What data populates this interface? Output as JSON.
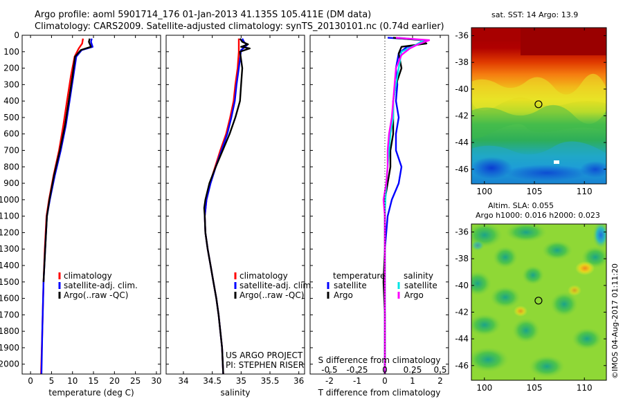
{
  "header": {
    "title_line1": "Argo profile: aoml 5901714_176 01-Jan-2013 41.135S 105.411E (DM data)",
    "title_line2": "Climatology: CARS2009. Satellite-adjusted climatology: synTS_20130101.nc (0.74d earlier)"
  },
  "colors": {
    "climatology": "#ff0000",
    "satellite": "#0000ff",
    "argo": "#000000",
    "salinity_satellite": "#00e5e5",
    "salinity_argo": "#ff00ff"
  },
  "chart_data": [
    {
      "type": "line",
      "id": "temperature",
      "xlabel": "temperature (deg C)",
      "xlim": [
        -2,
        31
      ],
      "ylim": [
        2060,
        0
      ],
      "x_ticks": [
        0,
        5,
        10,
        15,
        20,
        25,
        30
      ],
      "y_ticks": [
        0,
        100,
        200,
        300,
        400,
        500,
        600,
        700,
        800,
        900,
        1000,
        1100,
        1200,
        1300,
        1400,
        1500,
        1600,
        1700,
        1800,
        1900,
        2000
      ],
      "legend": [
        "climatology",
        "satellite-adj. clim.",
        "Argo(..raw -QC)"
      ],
      "series": [
        {
          "name": "climatology",
          "points": [
            [
              12.5,
              20
            ],
            [
              12.3,
              50
            ],
            [
              11.5,
              80
            ],
            [
              10.5,
              130
            ],
            [
              9.6,
              250
            ],
            [
              8.7,
              400
            ],
            [
              7.8,
              550
            ],
            [
              6.8,
              700
            ],
            [
              5.5,
              850
            ],
            [
              4.4,
              1000
            ],
            [
              3.8,
              1100
            ],
            [
              3.4,
              1300
            ],
            [
              3.1,
              1500
            ],
            [
              2.8,
              1800
            ],
            [
              2.5,
              2060
            ]
          ]
        },
        {
          "name": "satellite-adj. clim.",
          "points": [
            [
              14.6,
              20
            ],
            [
              14.4,
              40
            ],
            [
              14.8,
              70
            ],
            [
              12.2,
              90
            ],
            [
              10.9,
              130
            ],
            [
              10.2,
              250
            ],
            [
              9.3,
              400
            ],
            [
              8.4,
              550
            ],
            [
              7.2,
              700
            ],
            [
              5.8,
              850
            ],
            [
              4.6,
              1000
            ],
            [
              3.9,
              1100
            ],
            [
              3.5,
              1300
            ],
            [
              3.1,
              1500
            ],
            [
              2.8,
              1800
            ],
            [
              2.6,
              2060
            ]
          ]
        },
        {
          "name": "Argo(..raw -QC)",
          "points": [
            [
              14.1,
              20
            ],
            [
              13.9,
              40
            ],
            [
              14.4,
              70
            ],
            [
              12.0,
              90
            ],
            [
              10.6,
              130
            ],
            [
              10.0,
              250
            ],
            [
              9.1,
              400
            ],
            [
              8.2,
              550
            ],
            [
              7.0,
              700
            ],
            [
              5.6,
              850
            ],
            [
              4.5,
              1000
            ],
            [
              3.9,
              1100
            ],
            [
              3.5,
              1300
            ],
            [
              3.1,
              1500
            ]
          ]
        }
      ]
    },
    {
      "type": "line",
      "id": "salinity",
      "xlabel": "salinity",
      "xlim": [
        33.7,
        36.1
      ],
      "ylim": [
        2060,
        0
      ],
      "x_ticks": [
        34,
        34.5,
        35,
        35.5,
        36
      ],
      "legend": [
        "climatology",
        "satellite-adj. clim.",
        "Argo(..raw -QC)"
      ],
      "project_line1": "US ARGO PROJECT",
      "project_line2": "PI: STEPHEN RISER",
      "series": [
        {
          "name": "climatology",
          "points": [
            [
              34.96,
              20
            ],
            [
              34.96,
              100
            ],
            [
              34.94,
              200
            ],
            [
              34.9,
              300
            ],
            [
              34.87,
              400
            ],
            [
              34.81,
              500
            ],
            [
              34.74,
              600
            ],
            [
              34.64,
              700
            ],
            [
              34.55,
              800
            ],
            [
              34.46,
              900
            ],
            [
              34.4,
              1000
            ],
            [
              34.37,
              1100
            ],
            [
              34.38,
              1200
            ],
            [
              34.42,
              1300
            ],
            [
              34.47,
              1400
            ],
            [
              34.52,
              1500
            ],
            [
              34.57,
              1600
            ],
            [
              34.61,
              1700
            ],
            [
              34.64,
              1800
            ],
            [
              34.67,
              1900
            ],
            [
              34.69,
              2060
            ]
          ]
        },
        {
          "name": "satellite-adj. clim.",
          "points": [
            [
              35.02,
              20
            ],
            [
              35.05,
              40
            ],
            [
              35.1,
              60
            ],
            [
              35.0,
              90
            ],
            [
              34.96,
              200
            ],
            [
              34.92,
              300
            ],
            [
              34.89,
              400
            ],
            [
              34.83,
              500
            ],
            [
              34.76,
              600
            ],
            [
              34.66,
              700
            ],
            [
              34.56,
              800
            ],
            [
              34.47,
              900
            ],
            [
              34.4,
              1000
            ],
            [
              34.37,
              1100
            ],
            [
              34.38,
              1200
            ],
            [
              34.42,
              1300
            ],
            [
              34.47,
              1400
            ],
            [
              34.52,
              1500
            ],
            [
              34.57,
              1600
            ],
            [
              34.61,
              1700
            ],
            [
              34.64,
              1800
            ],
            [
              34.67,
              1900
            ],
            [
              34.69,
              2060
            ]
          ]
        },
        {
          "name": "Argo(..raw -QC)",
          "points": [
            [
              34.98,
              20
            ],
            [
              35.02,
              40
            ],
            [
              35.12,
              55
            ],
            [
              35.0,
              70
            ],
            [
              35.15,
              80
            ],
            [
              34.98,
              100
            ],
            [
              35.02,
              200
            ],
            [
              35.0,
              300
            ],
            [
              34.98,
              400
            ],
            [
              34.9,
              500
            ],
            [
              34.8,
              600
            ],
            [
              34.68,
              700
            ],
            [
              34.56,
              800
            ],
            [
              34.45,
              900
            ],
            [
              34.38,
              1000
            ],
            [
              34.36,
              1050
            ],
            [
              34.37,
              1100
            ],
            [
              34.38,
              1200
            ],
            [
              34.42,
              1300
            ],
            [
              34.47,
              1400
            ],
            [
              34.52,
              1500
            ],
            [
              34.57,
              1600
            ],
            [
              34.61,
              1700
            ],
            [
              34.64,
              1800
            ],
            [
              34.67,
              1900
            ],
            [
              34.69,
              2060
            ]
          ]
        }
      ]
    },
    {
      "type": "line",
      "id": "difference",
      "xlabel": "T difference from climatology",
      "xlabel_top": "S difference from climatology",
      "xlim": [
        -2.7,
        2.3
      ],
      "ylim": [
        2060,
        0
      ],
      "x_ticks": [
        -2,
        -1,
        0,
        1,
        2
      ],
      "s_tick_labels": [
        "-0.5",
        "-0.25",
        "0",
        "0.25",
        "0.5"
      ],
      "s_tick_positions": [
        -2,
        -1,
        0,
        1,
        2
      ],
      "legend_temperature": "temperature",
      "legend_salinity": "salinity",
      "legend_items": [
        "satellite",
        "Argo",
        "satellite",
        "Argo"
      ],
      "series": [
        {
          "name": "temperature satellite",
          "points": [
            [
              0.1,
              15
            ],
            [
              1.5,
              30
            ],
            [
              1.4,
              50
            ],
            [
              0.8,
              70
            ],
            [
              0.5,
              110
            ],
            [
              0.4,
              200
            ],
            [
              0.45,
              300
            ],
            [
              0.4,
              400
            ],
            [
              0.5,
              500
            ],
            [
              0.4,
              600
            ],
            [
              0.4,
              700
            ],
            [
              0.6,
              800
            ],
            [
              0.5,
              900
            ],
            [
              0.25,
              1000
            ],
            [
              0.1,
              1100
            ],
            [
              0.0,
              1300
            ],
            [
              0.0,
              2060
            ]
          ]
        },
        {
          "name": "temperature Argo",
          "points": [
            [
              0.3,
              15
            ],
            [
              1.3,
              30
            ],
            [
              1.5,
              50
            ],
            [
              0.6,
              70
            ],
            [
              0.5,
              110
            ],
            [
              0.6,
              200
            ],
            [
              0.4,
              300
            ],
            [
              0.3,
              400
            ],
            [
              0.3,
              500
            ],
            [
              0.3,
              600
            ],
            [
              0.2,
              700
            ],
            [
              0.2,
              800
            ],
            [
              0.1,
              900
            ],
            [
              0.0,
              1000
            ],
            [
              0.0,
              1100
            ],
            [
              0.0,
              1300
            ],
            [
              -0.05,
              1500
            ],
            [
              0.0,
              1700
            ],
            [
              0.0,
              2060
            ]
          ]
        },
        {
          "name": "salinity satellite",
          "points": [
            [
              0.5,
              15
            ],
            [
              1.4,
              30
            ],
            [
              1.1,
              60
            ],
            [
              0.6,
              100
            ],
            [
              0.5,
              200
            ],
            [
              0.4,
              300
            ],
            [
              0.3,
              400
            ],
            [
              0.3,
              500
            ],
            [
              0.2,
              600
            ],
            [
              0.15,
              700
            ],
            [
              0.1,
              800
            ],
            [
              0.05,
              900
            ],
            [
              0.02,
              1000
            ],
            [
              0.0,
              1100
            ],
            [
              0.0,
              1300
            ],
            [
              0.0,
              2060
            ]
          ]
        },
        {
          "name": "salinity Argo",
          "points": [
            [
              0.4,
              15
            ],
            [
              1.6,
              30
            ],
            [
              1.2,
              55
            ],
            [
              0.9,
              80
            ],
            [
              0.6,
              120
            ],
            [
              0.4,
              200
            ],
            [
              0.35,
              300
            ],
            [
              0.3,
              400
            ],
            [
              0.25,
              500
            ],
            [
              0.15,
              600
            ],
            [
              0.1,
              700
            ],
            [
              0.1,
              800
            ],
            [
              0.05,
              900
            ],
            [
              -0.05,
              1000
            ],
            [
              0.0,
              1100
            ],
            [
              0.0,
              1300
            ],
            [
              0.0,
              2060
            ]
          ]
        }
      ]
    },
    {
      "type": "heatmap",
      "id": "sst_map",
      "title": "sat. SST: 14 Argo: 13.9",
      "xlim": [
        98.7,
        112.2
      ],
      "ylim": [
        -47.1,
        -35.4
      ],
      "x_ticks": [
        100,
        105,
        110
      ],
      "y_ticks": [
        -36,
        -38,
        -40,
        -42,
        -44,
        -46
      ],
      "marker": [
        105.411,
        -41.135
      ]
    },
    {
      "type": "heatmap",
      "id": "sla_map",
      "title_line1": "Altim. SLA: 0.055",
      "title_line2": "Argo h1000: 0.016 h2000: 0.023",
      "xlim": [
        98.7,
        112.2
      ],
      "ylim": [
        -47.1,
        -35.4
      ],
      "x_ticks": [
        100,
        105,
        110
      ],
      "y_ticks": [
        -36,
        -38,
        -40,
        -42,
        -44,
        -46
      ],
      "marker": [
        105.411,
        -41.135
      ]
    }
  ],
  "footer": {
    "credit": "©IMOS 04-Aug-2017 01:11:20"
  }
}
